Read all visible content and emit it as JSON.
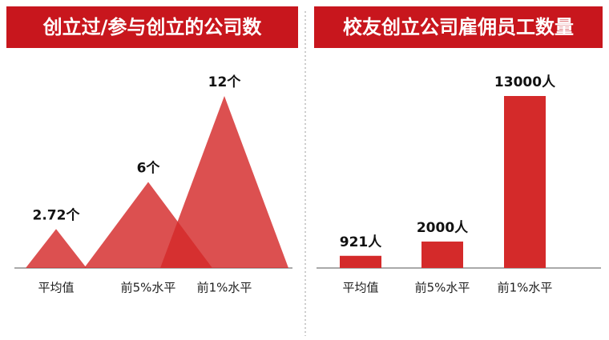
{
  "chart_data": [
    {
      "type": "peak",
      "title": "创立过/参与创立的公司数",
      "categories": [
        "平均值",
        "前5%水平",
        "前1%水平"
      ],
      "values": [
        2.72,
        6,
        12
      ],
      "value_labels": [
        "2.72个",
        "6个",
        "12个"
      ],
      "color": "#d42a2a"
    },
    {
      "type": "bar",
      "title": "校友创立公司雇佣员工数量",
      "categories": [
        "平均值",
        "前5%水平",
        "前1%水平"
      ],
      "values": [
        921,
        2000,
        13000
      ],
      "value_labels": [
        "921人",
        "2000人",
        "13000人"
      ],
      "color": "#d42a2a"
    }
  ]
}
